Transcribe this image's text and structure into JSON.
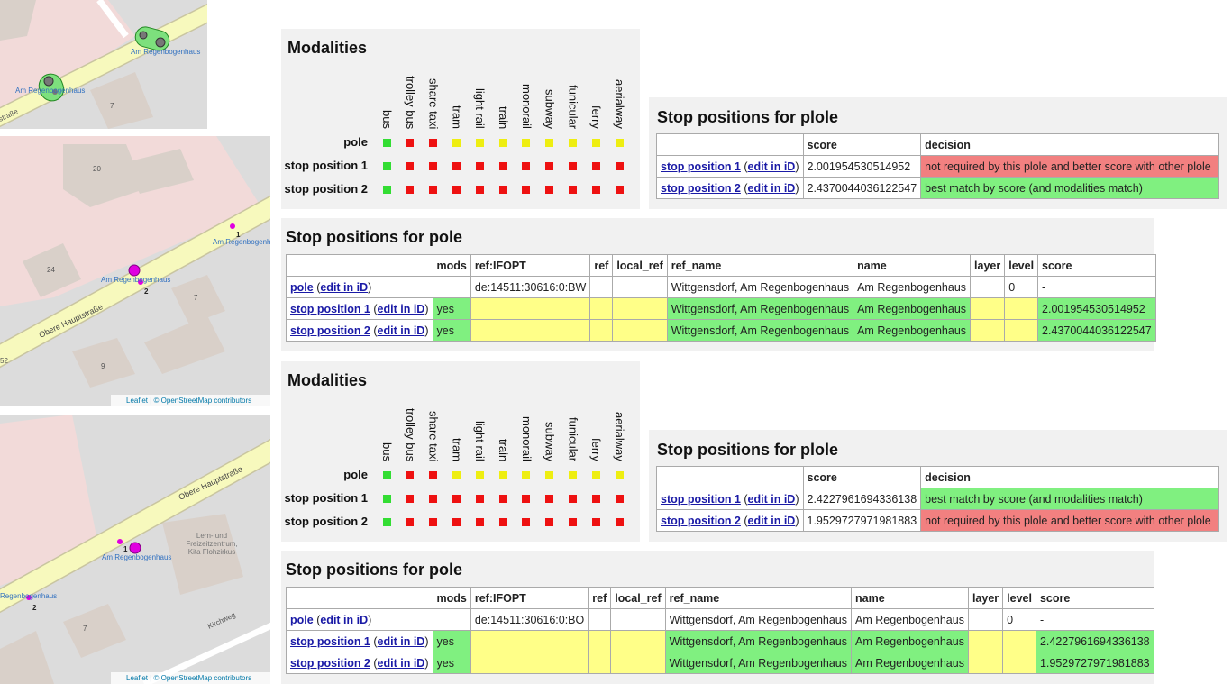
{
  "maps": [
    {
      "labels": [
        "Am Regenbogenhaus",
        "Am Regenbogenhaus",
        "straße",
        "7"
      ]
    },
    {
      "labels": [
        "Am Regenbogenhaus",
        "Am Regenbogenhaus",
        "Obere Hauptstraße",
        "20",
        "24",
        "7",
        "9",
        "52",
        "1",
        "2"
      ],
      "attribution": "Leaflet | © OpenStreetMap contributors"
    },
    {
      "labels": [
        "Obere Hauptstraße",
        "Am Regenbogenhaus",
        "Regenbogenhaus",
        "Lern- und Freizeitzentrum, Kita Flohzirkus",
        "Kirchweg",
        "7",
        "1",
        "2"
      ],
      "attribution": "Leaflet | © OpenStreetMap contributors"
    }
  ],
  "groups": [
    {
      "modalities": {
        "title": "Modalities",
        "columns": [
          "bus",
          "trolley bus",
          "share taxi",
          "tram",
          "light rail",
          "train",
          "monorail",
          "subway",
          "funicular",
          "ferry",
          "aerialway"
        ],
        "rows": [
          {
            "label": "pole",
            "colors": [
              "#33dd33",
              "#ee1111",
              "#ee1111",
              "#eeee11",
              "#eeee11",
              "#eeee11",
              "#eeee11",
              "#eeee11",
              "#eeee11",
              "#eeee11",
              "#eeee11"
            ]
          },
          {
            "label": "stop position 1",
            "colors": [
              "#33dd33",
              "#ee1111",
              "#ee1111",
              "#ee1111",
              "#ee1111",
              "#ee1111",
              "#ee1111",
              "#ee1111",
              "#ee1111",
              "#ee1111",
              "#ee1111"
            ]
          },
          {
            "label": "stop position 2",
            "colors": [
              "#33dd33",
              "#ee1111",
              "#ee1111",
              "#ee1111",
              "#ee1111",
              "#ee1111",
              "#ee1111",
              "#ee1111",
              "#ee1111",
              "#ee1111",
              "#ee1111"
            ]
          }
        ]
      },
      "plole": {
        "title": "Stop positions for plole",
        "headers": [
          null,
          "score",
          "decision"
        ],
        "rows": [
          {
            "parts": [
              "stop position 1",
              "(",
              "edit in iD",
              ")"
            ],
            "cells": [
              "2.001954530514952",
              "not required by this plole and better score with other plole"
            ],
            "colors": [
              null,
              "#f28080"
            ]
          },
          {
            "parts": [
              "stop position 2",
              "(",
              "edit in iD",
              ")"
            ],
            "cells": [
              "2.4370044036122547",
              "best match by score (and modalities match)"
            ],
            "colors": [
              null,
              "#80f080"
            ]
          }
        ]
      },
      "pole": {
        "title": "Stop positions for pole",
        "headers": [
          null,
          "mods",
          "ref:IFOPT",
          "ref",
          "local_ref",
          "ref_name",
          "name",
          "layer",
          "level",
          "score"
        ],
        "rows": [
          {
            "parts": [
              "pole",
              "(",
              "edit in iD",
              ")"
            ],
            "cells": [
              null,
              "de:14511:30616:0:BW",
              null,
              null,
              "Wittgensdorf, Am Regenbogenhaus",
              "Am Regenbogenhaus",
              null,
              "0",
              "-"
            ],
            "colors": [
              null,
              null,
              null,
              null,
              null,
              null,
              null,
              null,
              null
            ]
          },
          {
            "parts": [
              "stop position 1",
              "(",
              "edit in iD",
              ")"
            ],
            "cells": [
              "yes",
              null,
              null,
              null,
              "Wittgensdorf, Am Regenbogenhaus",
              "Am Regenbogenhaus",
              null,
              null,
              "2.001954530514952"
            ],
            "colors": [
              "#80f080",
              "#ffff88",
              "#ffff88",
              "#ffff88",
              "#80f080",
              "#80f080",
              "#ffff88",
              "#ffff88",
              "#80f080"
            ]
          },
          {
            "parts": [
              "stop position 2",
              "(",
              "edit in iD",
              ")"
            ],
            "cells": [
              "yes",
              null,
              null,
              null,
              "Wittgensdorf, Am Regenbogenhaus",
              "Am Regenbogenhaus",
              null,
              null,
              "2.4370044036122547"
            ],
            "colors": [
              "#80f080",
              "#ffff88",
              "#ffff88",
              "#ffff88",
              "#80f080",
              "#80f080",
              "#ffff88",
              "#ffff88",
              "#80f080"
            ]
          }
        ]
      }
    },
    {
      "modalities": {
        "title": "Modalities",
        "columns": [
          "bus",
          "trolley bus",
          "share taxi",
          "tram",
          "light rail",
          "train",
          "monorail",
          "subway",
          "funicular",
          "ferry",
          "aerialway"
        ],
        "rows": [
          {
            "label": "pole",
            "colors": [
              "#33dd33",
              "#ee1111",
              "#ee1111",
              "#eeee11",
              "#eeee11",
              "#eeee11",
              "#eeee11",
              "#eeee11",
              "#eeee11",
              "#eeee11",
              "#eeee11"
            ]
          },
          {
            "label": "stop position 1",
            "colors": [
              "#33dd33",
              "#ee1111",
              "#ee1111",
              "#ee1111",
              "#ee1111",
              "#ee1111",
              "#ee1111",
              "#ee1111",
              "#ee1111",
              "#ee1111",
              "#ee1111"
            ]
          },
          {
            "label": "stop position 2",
            "colors": [
              "#33dd33",
              "#ee1111",
              "#ee1111",
              "#ee1111",
              "#ee1111",
              "#ee1111",
              "#ee1111",
              "#ee1111",
              "#ee1111",
              "#ee1111",
              "#ee1111"
            ]
          }
        ]
      },
      "plole": {
        "title": "Stop positions for plole",
        "headers": [
          null,
          "score",
          "decision"
        ],
        "rows": [
          {
            "parts": [
              "stop position 1",
              "(",
              "edit in iD",
              ")"
            ],
            "cells": [
              "2.4227961694336138",
              "best match by score (and modalities match)"
            ],
            "colors": [
              null,
              "#80f080"
            ]
          },
          {
            "parts": [
              "stop position 2",
              "(",
              "edit in iD",
              ")"
            ],
            "cells": [
              "1.9529727971981883",
              "not required by this plole and better score with other plole"
            ],
            "colors": [
              null,
              "#f28080"
            ]
          }
        ]
      },
      "pole": {
        "title": "Stop positions for pole",
        "headers": [
          null,
          "mods",
          "ref:IFOPT",
          "ref",
          "local_ref",
          "ref_name",
          "name",
          "layer",
          "level",
          "score"
        ],
        "rows": [
          {
            "parts": [
              "pole",
              "(",
              "edit in iD",
              ")"
            ],
            "cells": [
              null,
              "de:14511:30616:0:BO",
              null,
              null,
              "Wittgensdorf, Am Regenbogenhaus",
              "Am Regenbogenhaus",
              null,
              "0",
              "-"
            ],
            "colors": [
              null,
              null,
              null,
              null,
              null,
              null,
              null,
              null,
              null
            ]
          },
          {
            "parts": [
              "stop position 1",
              "(",
              "edit in iD",
              ")"
            ],
            "cells": [
              "yes",
              null,
              null,
              null,
              "Wittgensdorf, Am Regenbogenhaus",
              "Am Regenbogenhaus",
              null,
              null,
              "2.4227961694336138"
            ],
            "colors": [
              "#80f080",
              "#ffff88",
              "#ffff88",
              "#ffff88",
              "#80f080",
              "#80f080",
              "#ffff88",
              "#ffff88",
              "#80f080"
            ]
          },
          {
            "parts": [
              "stop position 2",
              "(",
              "edit in iD",
              ")"
            ],
            "cells": [
              "yes",
              null,
              null,
              null,
              "Wittgensdorf, Am Regenbogenhaus",
              "Am Regenbogenhaus",
              null,
              null,
              "1.9529727971981883"
            ],
            "colors": [
              "#80f080",
              "#ffff88",
              "#ffff88",
              "#ffff88",
              "#80f080",
              "#80f080",
              "#ffff88",
              "#ffff88",
              "#80f080"
            ]
          }
        ]
      }
    }
  ]
}
